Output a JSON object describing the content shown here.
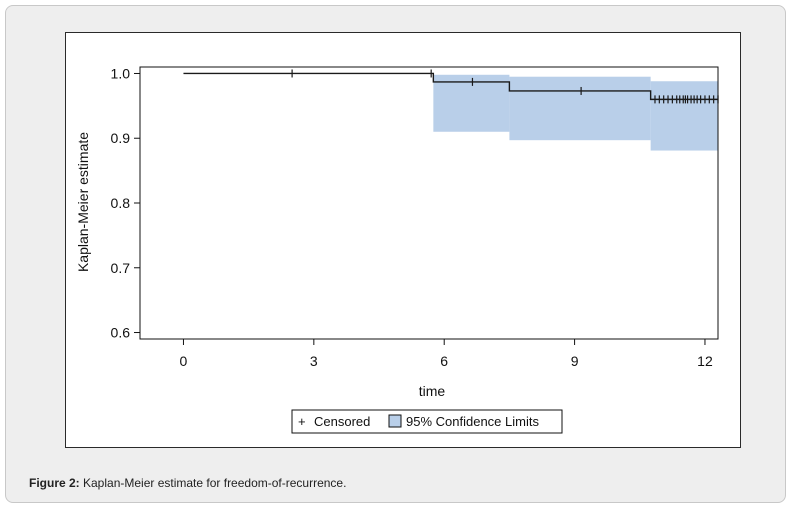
{
  "caption": {
    "label": "Figure 2:",
    "text": " Kaplan-Meier estimate for freedom-of-recurrence."
  },
  "chart_data": {
    "type": "line",
    "title": "",
    "xlabel": "time",
    "ylabel": "Kaplan-Meier estimate",
    "xlim": [
      -1,
      12.3
    ],
    "ylim": [
      0.59,
      1.01
    ],
    "xticks": [
      0,
      3,
      6,
      9,
      12
    ],
    "yticks": [
      0.6,
      0.7,
      0.8,
      0.9,
      1.0
    ],
    "xtick_labels": [
      "0",
      "3",
      "6",
      "9",
      "12"
    ],
    "ytick_labels": [
      "0.6",
      "0.7",
      "0.8",
      "0.9",
      "1.0"
    ],
    "grid": false,
    "legend_position": "bottom",
    "legend": [
      {
        "symbol": "+",
        "label": "Censored"
      },
      {
        "symbol": "box",
        "label": "95% Confidence Limits"
      }
    ],
    "colors": {
      "line": "#1a1a1a",
      "ci_fill": "#b9cfe9"
    },
    "survival_steps": [
      {
        "x": 0.0,
        "y": 1.0
      },
      {
        "x": 5.75,
        "y": 0.987
      },
      {
        "x": 7.5,
        "y": 0.973
      },
      {
        "x": 10.75,
        "y": 0.96
      },
      {
        "x": 12.5,
        "y": 0.96
      }
    ],
    "ci_bands": [
      {
        "x_start": 5.75,
        "x_end": 7.5,
        "lower": 0.91,
        "upper": 0.998
      },
      {
        "x_start": 7.5,
        "x_end": 10.75,
        "lower": 0.897,
        "upper": 0.995
      },
      {
        "x_start": 10.75,
        "x_end": 12.5,
        "lower": 0.881,
        "upper": 0.988
      }
    ],
    "censored_times": [
      2.5,
      5.7,
      6.65,
      9.15,
      10.85,
      10.95,
      11.05,
      11.15,
      11.25,
      11.35,
      11.42,
      11.5,
      11.55,
      11.6,
      11.68,
      11.75,
      11.82,
      11.9,
      12.0,
      12.1,
      12.2,
      12.3,
      12.45
    ]
  }
}
